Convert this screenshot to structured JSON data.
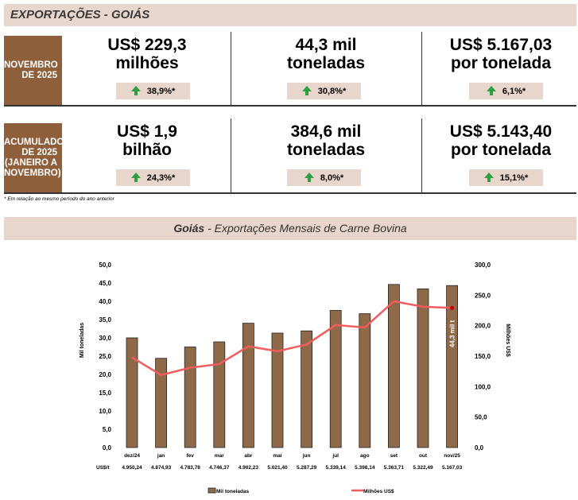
{
  "header": {
    "title": "EXPORTAÇÕES - GOIÁS"
  },
  "rows": [
    {
      "label": "NOVEMBRO\nDE 2025",
      "cells": [
        {
          "value": "US$ 229,3\nmilhões",
          "change": "38,9%*"
        },
        {
          "value": "44,3 mil\ntoneladas",
          "change": "30,8%*"
        },
        {
          "value": "US$ 5.167,03\npor tonelada",
          "change": "6,1%*"
        }
      ]
    },
    {
      "label": "ACUMULADO\nDE 2025\n(JANEIRO A\nNOVEMBRO)",
      "cells": [
        {
          "value": "US$ 1,9\nbilhão",
          "change": "24,3%*"
        },
        {
          "value": "384,6 mil\ntoneladas",
          "change": "8,0%*"
        },
        {
          "value": "US$ 5.143,40\npor tonelada",
          "change": "15,1%*"
        }
      ]
    }
  ],
  "footnote": "* Em relação ao mesmo período do ano anterior",
  "chart_title": {
    "bold": "Goiás",
    "rest": " - Exportações Mensais de Carne Bovina"
  },
  "colors": {
    "bar": "#8f6a48",
    "line": "#f25c5c",
    "accent_bg": "#e8d5cb",
    "label_bg": "#8f5f3c",
    "up": "#2ea043"
  },
  "chart_data": {
    "type": "bar",
    "categories": [
      "dez/24",
      "jan",
      "fev",
      "mar",
      "abr",
      "mai",
      "jun",
      "jul",
      "ago",
      "set",
      "out",
      "nov/25"
    ],
    "series": [
      {
        "name": "Mil toneladas",
        "axis": "left",
        "type": "bar",
        "values": [
          30.0,
          24.4,
          27.5,
          28.9,
          34.0,
          31.3,
          31.9,
          37.5,
          36.6,
          44.6,
          43.4,
          44.3
        ]
      },
      {
        "name": "Milhões US$",
        "axis": "right",
        "type": "line",
        "values": [
          148,
          119,
          131,
          137,
          166,
          158,
          169,
          201,
          197,
          240,
          231,
          229
        ]
      }
    ],
    "price_row_label": "US$/t",
    "price_per_ton": [
      "4.950,24",
      "4.874,93",
      "4.783,78",
      "4.746,37",
      "4.902,23",
      "5.021,40",
      "5.287,29",
      "5.339,14",
      "5.398,14",
      "5.363,71",
      "5.322,49",
      "5.167,03"
    ],
    "ylabel": "Mil toneladas",
    "y2label": "Milhões US$",
    "ylim": [
      0,
      50
    ],
    "y2lim": [
      0,
      300
    ],
    "yticks": [
      "0,0",
      "5,0",
      "10,0",
      "15,0",
      "20,0",
      "25,0",
      "30,0",
      "35,0",
      "40,0",
      "45,0",
      "50,0"
    ],
    "y2ticks": [
      "0,0",
      "50,0",
      "100,0",
      "150,0",
      "200,0",
      "250,0",
      "300,0"
    ],
    "annotation": "44,3 mil t",
    "legend": "bottom",
    "grid": false
  }
}
